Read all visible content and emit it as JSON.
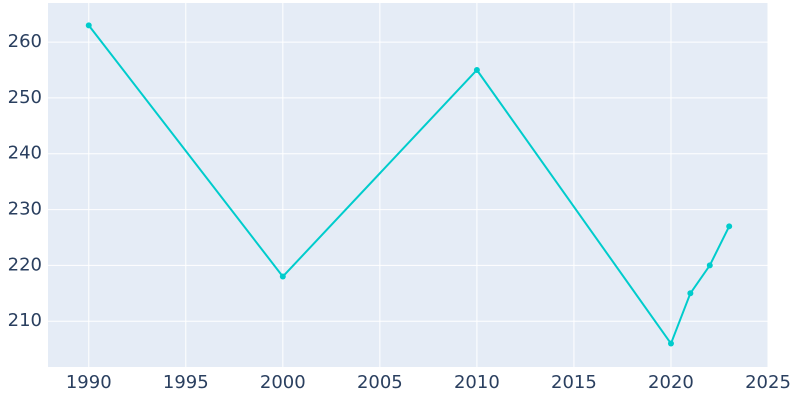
{
  "chart_data": {
    "type": "line",
    "x": [
      1990,
      2000,
      2010,
      2020,
      2021,
      2022,
      2023
    ],
    "series": [
      {
        "color": "#00cccc",
        "values": [
          263,
          218,
          255,
          206,
          215,
          220,
          227
        ]
      }
    ],
    "xlim": [
      1987.9,
      2025
    ],
    "xticks": [
      1990,
      1995,
      2000,
      2005,
      2010,
      2015,
      2020,
      2025
    ],
    "ylim": [
      201.8,
      267
    ],
    "yticks": [
      210,
      220,
      230,
      240,
      250,
      260
    ],
    "grid": true,
    "background": "#e5ecf6"
  }
}
